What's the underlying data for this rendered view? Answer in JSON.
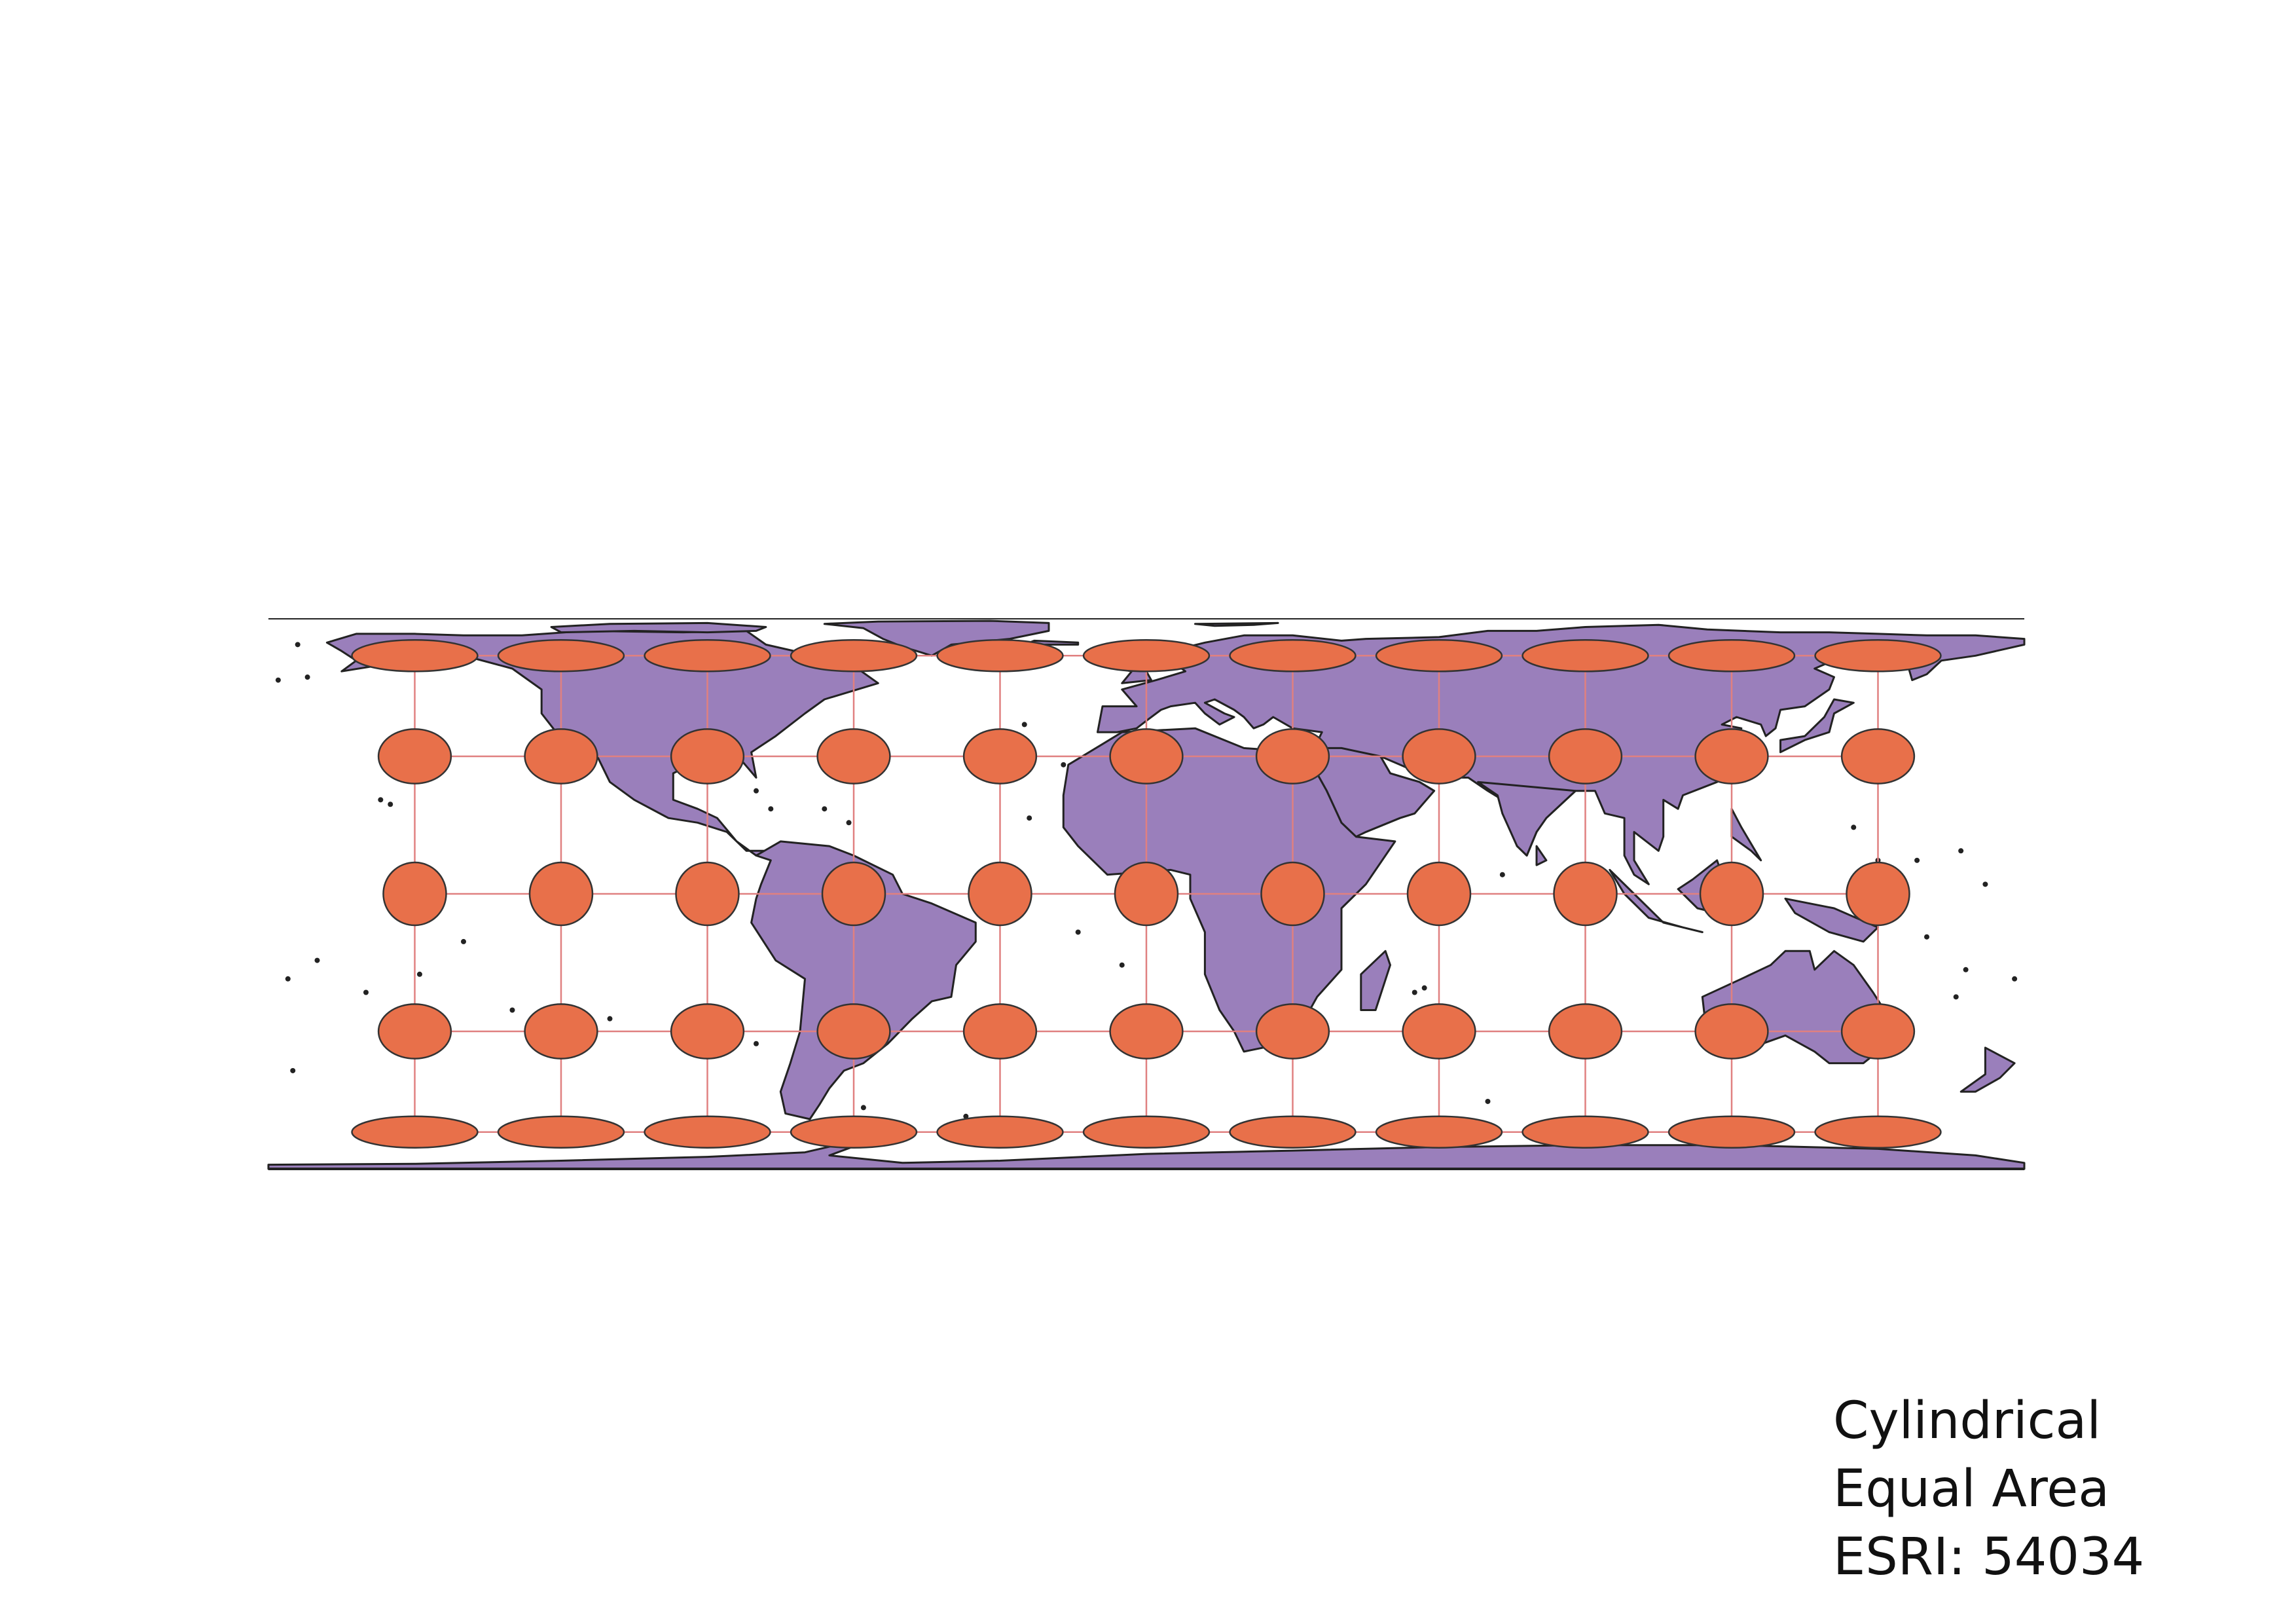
{
  "map": {
    "caption": {
      "line1": "Cylindrical",
      "line2": "Equal Area",
      "line3": "ESRI: 54034"
    },
    "colors": {
      "land_fill": "#9a7fbb",
      "land_outline": "#222222",
      "indicatrix_fill": "#e8704a",
      "indicatrix_outline": "#333333",
      "graticule": "#e08080",
      "background": "#ffffff"
    },
    "projection": "cylindrical-equal-area",
    "graticule": {
      "longitudes": [
        -150,
        -120,
        -90,
        -60,
        -30,
        0,
        30,
        60,
        90,
        120,
        150
      ],
      "latitudes": [
        60,
        30,
        0,
        -30,
        -60
      ]
    }
  }
}
